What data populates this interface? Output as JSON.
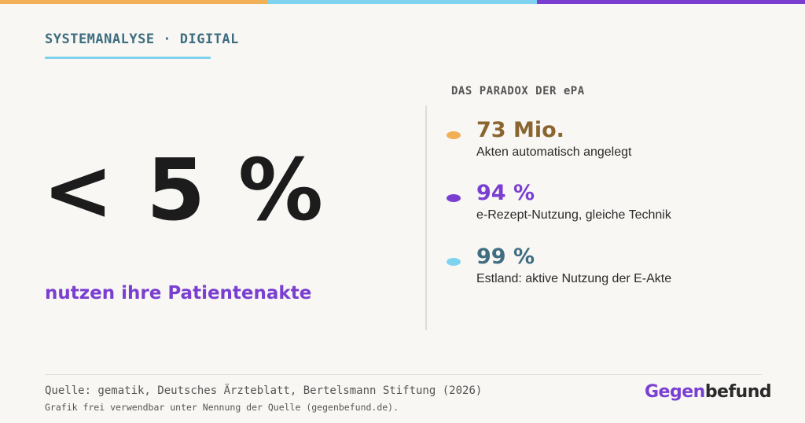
{
  "colors": {
    "orange": "#f2b056",
    "cyan": "#7fd3ef",
    "purple": "#7a3fd1",
    "teal": "#3e6e80",
    "brown": "#8a6530",
    "dark": "#1c1c1c"
  },
  "header": {
    "kicker": "SYSTEMANALYSE · DIGITAL"
  },
  "hero": {
    "value": "< 5 %",
    "caption": "nutzen ihre Patientenakte"
  },
  "panel": {
    "title": "DAS PARADOX DER ePA",
    "items": [
      {
        "value": "73 Mio.",
        "label": "Akten automatisch angelegt",
        "dot_color": "#f2b056",
        "value_color": "#8a6530"
      },
      {
        "value": "94 %",
        "label": "e-Rezept-Nutzung, gleiche Technik",
        "dot_color": "#7a3fd1",
        "value_color": "#7a3fd1"
      },
      {
        "value": "99 %",
        "label": "Estland: aktive Nutzung der E-Akte",
        "dot_color": "#7fd3ef",
        "value_color": "#3e6e80"
      }
    ]
  },
  "footer": {
    "source": "Quelle: gematik, Deutsches Ärzteblatt, Bertelsmann Stiftung (2026)",
    "license": "Grafik frei verwendbar unter Nennung der Quelle (gegenbefund.de).",
    "logo_part1": "Gegen",
    "logo_part2": "befund"
  }
}
